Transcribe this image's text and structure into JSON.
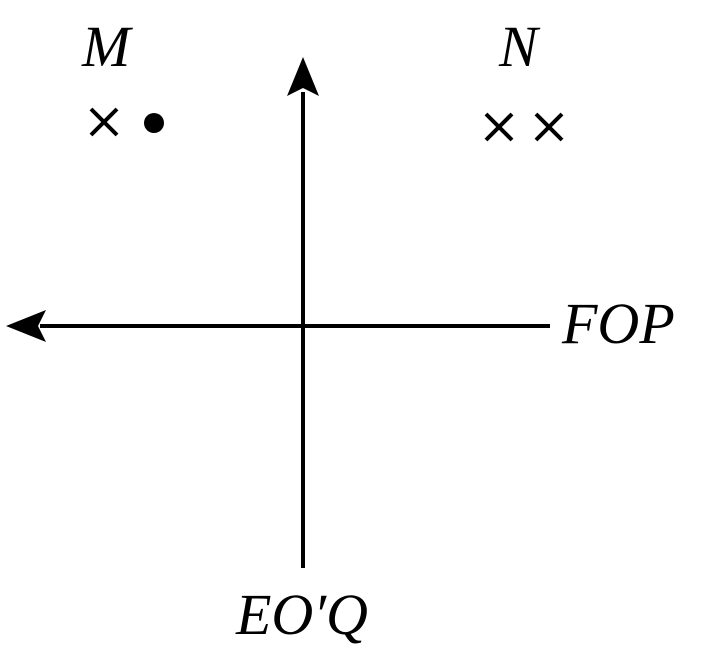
{
  "colors": {
    "ink": "#000000",
    "background": "#ffffff"
  },
  "axes": {
    "horizontal_label": "FOP",
    "vertical_label": "EO′Q",
    "horizontal_arrow": "points-left",
    "vertical_arrow": "points-up"
  },
  "groups": [
    {
      "label": "M",
      "quadrant": "top-left",
      "markers": [
        "cross",
        "dot"
      ]
    },
    {
      "label": "N",
      "quadrant": "top-right",
      "markers": [
        "cross",
        "cross"
      ]
    }
  ]
}
